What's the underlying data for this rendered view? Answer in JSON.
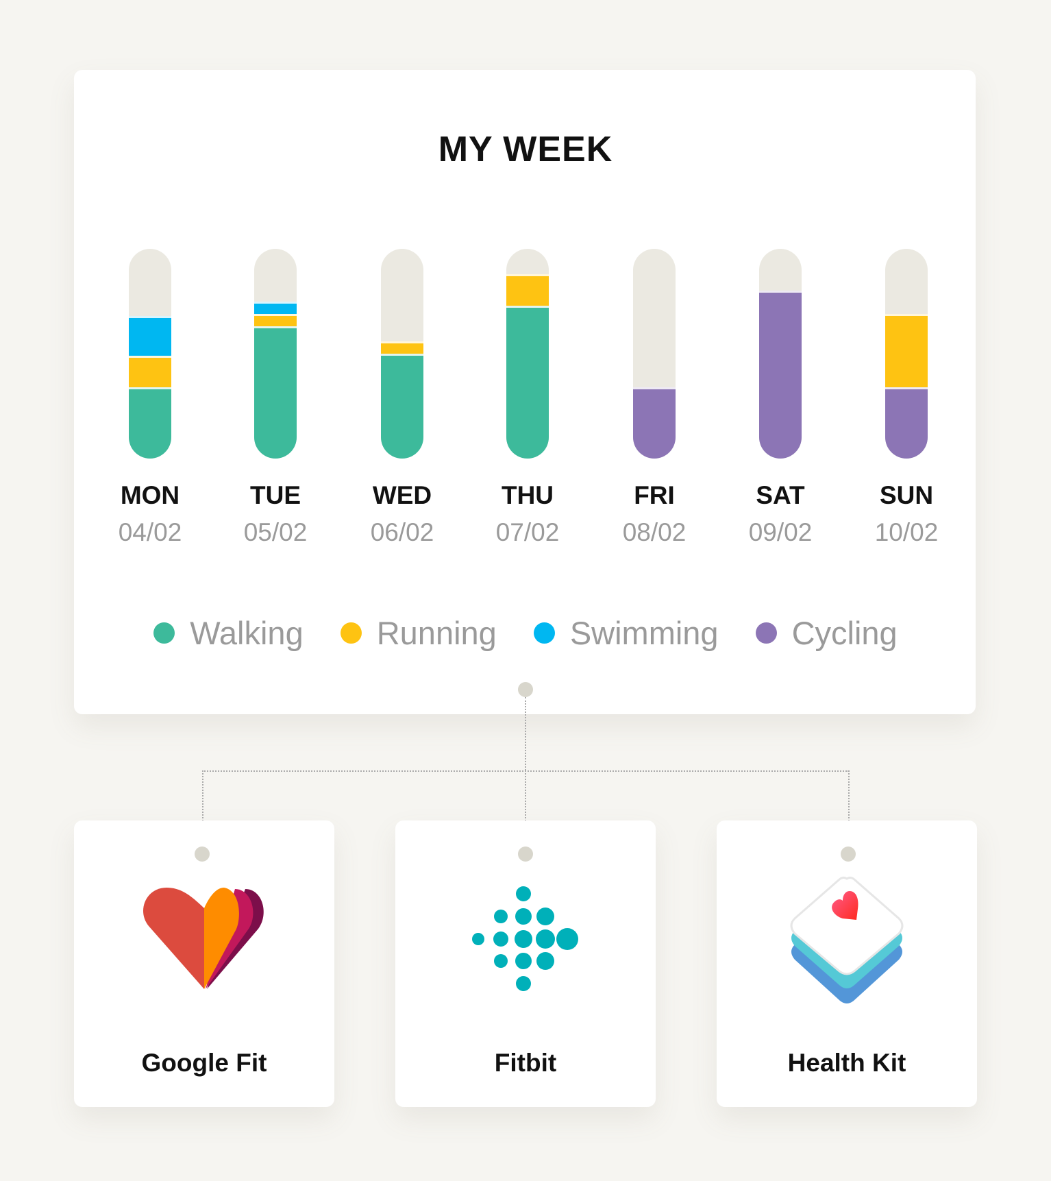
{
  "chart_data": {
    "type": "bar",
    "stacked": true,
    "title": "MY WEEK",
    "categories": [
      "MON",
      "TUE",
      "WED",
      "THU",
      "FRI",
      "SAT",
      "SUN"
    ],
    "dates": [
      "04/02",
      "05/02",
      "06/02",
      "07/02",
      "08/02",
      "09/02",
      "10/02"
    ],
    "ylim": [
      0,
      100
    ],
    "grid": false,
    "legend_position": "bottom",
    "series": [
      {
        "name": "Walking",
        "color": "#3dba9b",
        "values": [
          34,
          63,
          50,
          73,
          0,
          0,
          0
        ]
      },
      {
        "name": "Running",
        "color": "#fec312",
        "values": [
          15,
          6,
          6,
          15,
          0,
          0,
          35
        ]
      },
      {
        "name": "Swimming",
        "color": "#00b7f1",
        "values": [
          19,
          6,
          0,
          0,
          0,
          0,
          0
        ]
      },
      {
        "name": "Cycling",
        "color": "#8c75b5",
        "values": [
          0,
          0,
          0,
          0,
          34,
          80,
          34
        ]
      }
    ],
    "track_color": "#ebe9e1"
  },
  "sources": [
    {
      "label": "Google Fit",
      "icon": "google-fit-heart-icon"
    },
    {
      "label": "Fitbit",
      "icon": "fitbit-dots-icon"
    },
    {
      "label": "Health Kit",
      "icon": "healthkit-stack-icon"
    }
  ]
}
